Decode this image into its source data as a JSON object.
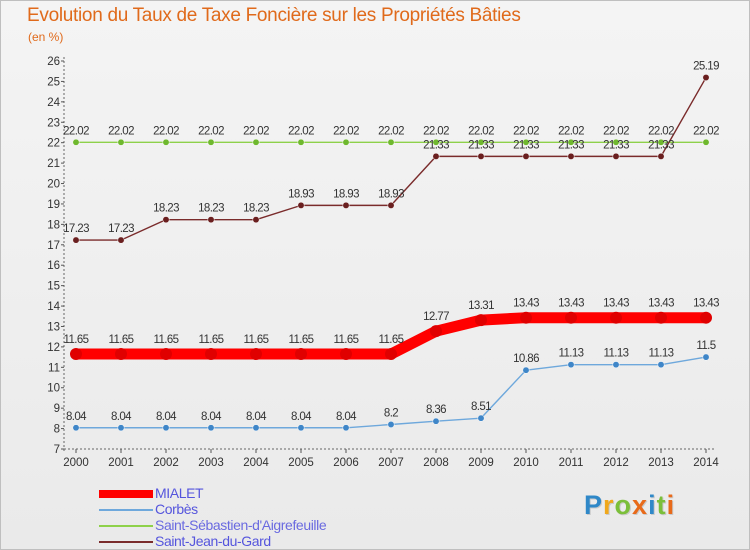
{
  "title": "Evolution du Taux de Taxe Foncière sur les Propriétés Bâties",
  "unit": "(en %)",
  "logo": {
    "letters": [
      "P",
      "r",
      "o",
      "x",
      "i",
      "t",
      "i"
    ],
    "colors": [
      "#2f88c8",
      "#f0a81c",
      "#7bbf3a",
      "#e86a1a",
      "#2f88c8",
      "#7bbf3a",
      "#e86a1a"
    ]
  },
  "chart_data": {
    "type": "line",
    "title": "Evolution du Taux de Taxe Foncière sur les Propriétés Bâties",
    "ylabel": "(en %)",
    "xlabel": "",
    "x": [
      "2000",
      "2001",
      "2002",
      "2003",
      "2004",
      "2005",
      "2006",
      "2007",
      "2008",
      "2009",
      "2010",
      "2011",
      "2012",
      "2013",
      "2014"
    ],
    "ylim": [
      7,
      26
    ],
    "yticks": [
      7,
      8,
      9,
      10,
      11,
      12,
      13,
      14,
      15,
      16,
      17,
      18,
      19,
      20,
      21,
      22,
      23,
      24,
      25,
      26
    ],
    "grid": false,
    "legend": "bottom-left",
    "series": [
      {
        "name": "Saint-Sébastien-d'Aigrefeuille",
        "color": "#8ed14a",
        "marker": "#6fb82e",
        "values": [
          22.02,
          22.02,
          22.02,
          22.02,
          22.02,
          22.02,
          22.02,
          22.02,
          22.02,
          22.02,
          22.02,
          22.02,
          22.02,
          22.02,
          22.02
        ],
        "labels": [
          "22.02",
          "22.02",
          "22.02",
          "22.02",
          "22.02",
          "22.02",
          "22.02",
          "22.02",
          "22.02",
          "22.02",
          "22.02",
          "22.02",
          "22.02",
          "22.02",
          "22.02"
        ],
        "thick": false
      },
      {
        "name": "Saint-Jean-du-Gard",
        "color": "#7a2b2b",
        "marker": "#6a1f1f",
        "values": [
          17.23,
          17.23,
          18.23,
          18.23,
          18.23,
          18.93,
          18.93,
          18.93,
          21.33,
          21.33,
          21.33,
          21.33,
          21.33,
          21.33,
          25.19
        ],
        "labels": [
          "17.23",
          "17.23",
          "18.23",
          "18.23",
          "18.23",
          "18.93",
          "18.93",
          "18.93",
          "21.33",
          "21.33",
          "21.33",
          "21.33",
          "21.33",
          "21.33",
          "25.19"
        ],
        "thick": false
      },
      {
        "name": "MIALET",
        "color": "#ff0000",
        "marker": "#e00000",
        "values": [
          11.65,
          11.65,
          11.65,
          11.65,
          11.65,
          11.65,
          11.65,
          11.65,
          12.77,
          13.31,
          13.43,
          13.43,
          13.43,
          13.43,
          13.43
        ],
        "labels": [
          "11.65",
          "11.65",
          "11.65",
          "11.65",
          "11.65",
          "11.65",
          "11.65",
          "11.65",
          "12.77",
          "13.31",
          "13.43",
          "13.43",
          "13.43",
          "13.43",
          "13.43"
        ],
        "thick": true
      },
      {
        "name": "Corbès",
        "color": "#6ea8dc",
        "marker": "#3f86c8",
        "values": [
          8.04,
          8.04,
          8.04,
          8.04,
          8.04,
          8.04,
          8.04,
          8.2,
          8.36,
          8.51,
          10.86,
          11.13,
          11.13,
          11.13,
          11.5
        ],
        "labels": [
          "8.04",
          "8.04",
          "8.04",
          "8.04",
          "8.04",
          "8.04",
          "8.04",
          "8.2",
          "8.36",
          "8.51",
          "10.86",
          "11.13",
          "11.13",
          "11.13",
          "11.5"
        ],
        "thick": false
      }
    ],
    "legend_order": [
      "MIALET",
      "Corbès",
      "Saint-Sébastien-d'Aigrefeuille",
      "Saint-Jean-du-Gard"
    ]
  }
}
